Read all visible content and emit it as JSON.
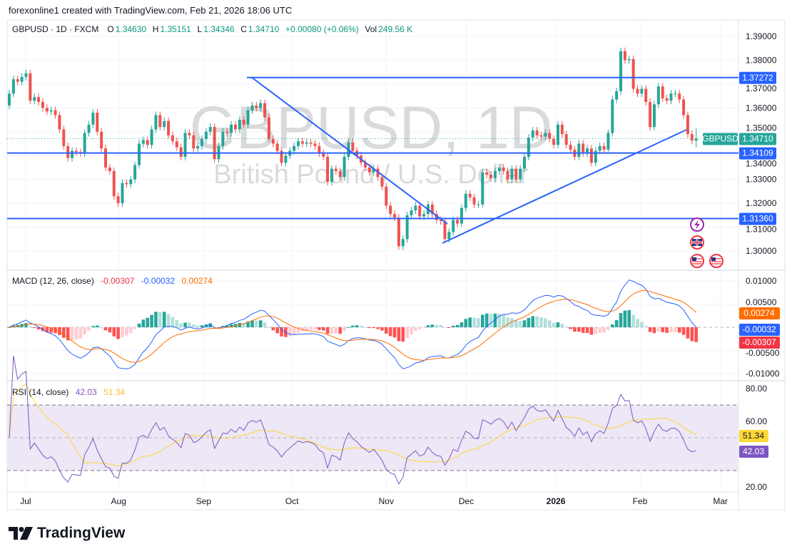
{
  "header": {
    "attribution": "forexonline1 created with TradingView.com, Feb 21, 2026 18:06 UTC"
  },
  "legend": {
    "symbol": "GBPUSD · 1D · FXCM",
    "o_label": "O",
    "o": "1.34630",
    "h_label": "H",
    "h": "1.35151",
    "l_label": "L",
    "l": "1.34346",
    "c_label": "C",
    "c": "1.34710",
    "change": "+0.00080 (+0.06%)",
    "vol_label": "Vol",
    "vol": "249.56 K"
  },
  "watermark": {
    "title": "GBPUSD, 1D",
    "subtitle": "British Pound / U.S. Dollar"
  },
  "colors": {
    "up": "#26a69a",
    "down": "#ef5350",
    "line": "#2962ff",
    "macd": "#2962ff",
    "signal": "#ff6d00",
    "rsi": "#7e57c2",
    "rsi_ma": "#fdd835",
    "rsi_band": "#ede7f6"
  },
  "logo": {
    "text": "TradingView"
  },
  "chart_data": [
    {
      "type": "candlestick",
      "title": "GBPUSD · 1D · FXCM",
      "ylim": [
        1.295,
        1.392
      ],
      "price_ticks": [
        "1.39000",
        "1.38000",
        "1.37000",
        "1.36000",
        "1.35000",
        "1.34000",
        "1.33000",
        "1.32000",
        "1.31000",
        "1.30000"
      ],
      "x_ticks": [
        "Jul",
        "Aug",
        "Sep",
        "Oct",
        "Nov",
        "Dec",
        "2026",
        "Feb",
        "Mar"
      ],
      "last_bar": {
        "open": 1.3463,
        "high": 1.35151,
        "low": 1.34346,
        "close": 1.3471
      },
      "close": [
        1.366,
        1.372,
        1.371,
        1.373,
        1.3745,
        1.363,
        1.3645,
        1.3625,
        1.36,
        1.3585,
        1.359,
        1.357,
        1.351,
        1.344,
        1.339,
        1.342,
        1.3415,
        1.341,
        1.3495,
        1.353,
        1.358,
        1.35,
        1.343,
        1.335,
        1.3335,
        1.323,
        1.32,
        1.3285,
        1.328,
        1.33,
        1.336,
        1.345,
        1.3465,
        1.3445,
        1.351,
        1.357,
        1.352,
        1.3545,
        1.3485,
        1.346,
        1.3435,
        1.3395,
        1.3495,
        1.3485,
        1.343,
        1.344,
        1.347,
        1.35,
        1.352,
        1.3385,
        1.344,
        1.35,
        1.3495,
        1.353,
        1.351,
        1.355,
        1.353,
        1.359,
        1.361,
        1.36,
        1.362,
        1.356,
        1.347,
        1.345,
        1.342,
        1.337,
        1.34,
        1.342,
        1.344,
        1.346,
        1.345,
        1.3455,
        1.345,
        1.344,
        1.341,
        1.3395,
        1.329,
        1.3345,
        1.3335,
        1.331,
        1.3395,
        1.3455,
        1.342,
        1.34,
        1.337,
        1.335,
        1.333,
        1.3345,
        1.331,
        1.327,
        1.319,
        1.3155,
        1.314,
        1.302,
        1.305,
        1.315,
        1.317,
        1.319,
        1.3145,
        1.3155,
        1.3195,
        1.3155,
        1.313,
        1.3125,
        1.305,
        1.308,
        1.313,
        1.3115,
        1.318,
        1.324,
        1.3225,
        1.3195,
        1.3195,
        1.333,
        1.332,
        1.3305,
        1.3335,
        1.335,
        1.3335,
        1.33,
        1.3345,
        1.33,
        1.3345,
        1.3395,
        1.3475,
        1.3505,
        1.3485,
        1.348,
        1.3495,
        1.347,
        1.3445,
        1.353,
        1.349,
        1.3445,
        1.3425,
        1.3395,
        1.345,
        1.341,
        1.343,
        1.337,
        1.342,
        1.344,
        1.3425,
        1.3495,
        1.3635,
        1.367,
        1.3838,
        1.38,
        1.3805,
        1.368,
        1.366,
        1.368,
        1.3625,
        1.352,
        1.3615,
        1.369,
        1.364,
        1.363,
        1.366,
        1.366,
        1.3635,
        1.357,
        1.349,
        1.3463,
        1.3471
      ],
      "horizontal_levels": [
        {
          "value": 1.37272,
          "label": "1.37272"
        },
        {
          "value": 1.34109,
          "label": "1.34109"
        },
        {
          "value": 1.3136,
          "label": "1.31360"
        }
      ],
      "last_price": {
        "symbol": "GBPUSD",
        "label": "1.34710"
      },
      "events": [
        "lightning-icon",
        "uk-flag-icon",
        "us-flag-icon",
        "us-flag-icon"
      ]
    },
    {
      "type": "line",
      "title": "MACD (12, 26, close)",
      "values": {
        "histogram": "-0.00307",
        "macd": "-0.00032",
        "signal": "0.00274"
      },
      "ticks": [
        "0.01000",
        "0.00500",
        "-0.00500",
        "-0.01000"
      ],
      "ylim": [
        -0.0105,
        0.0105
      ]
    },
    {
      "type": "line",
      "title": "RSI (14, close)",
      "values": {
        "rsi": "42.03",
        "ma": "51.34"
      },
      "ticks": [
        "80.00",
        "60.00",
        "20.00"
      ],
      "bands": [
        70,
        50,
        30
      ],
      "ylim": [
        18,
        82
      ]
    }
  ]
}
